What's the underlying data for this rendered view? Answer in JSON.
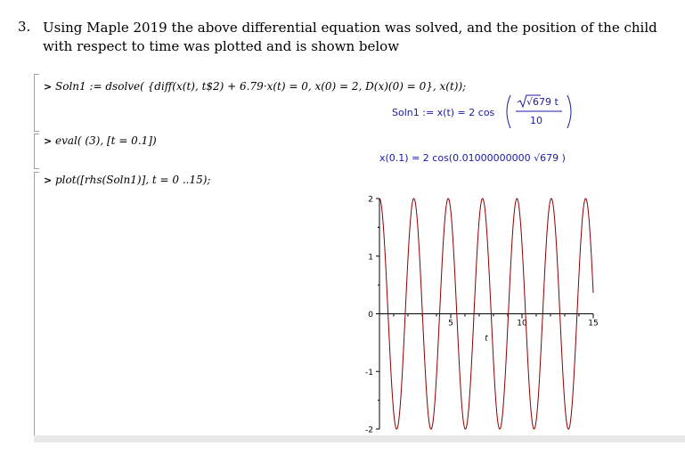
{
  "question": {
    "number": "3.",
    "text": "Using Maple 2019 the above differential equation was solved, and the position of the child with respect to time was plotted and is shown below"
  },
  "maple": {
    "prompt_symbol": ">",
    "commands": [
      "Soln1 := dsolve( {diff(x(t), t$2) + 6.79·x(t) = 0, x(0) = 2, D(x)(0) = 0}, x(t));",
      "eval( (3), [t = 0.1])",
      "plot([rhs(Soln1)], t = 0 ..15);"
    ],
    "outputs": {
      "soln_lhs": "Soln1 := x(t) = 2 cos",
      "soln_num": "√679 t",
      "soln_den": "10",
      "eval_result": "x(0.1) = 2 cos(0.01000000000 √679 )"
    }
  },
  "chart_data": {
    "type": "line",
    "title": "",
    "xlabel": "t",
    "ylabel": "",
    "xlim": [
      0,
      15
    ],
    "ylim": [
      -2,
      2
    ],
    "xticks": [
      "5",
      "10",
      "15"
    ],
    "yticks": [
      "2",
      "1",
      "0",
      "-1",
      "-2"
    ],
    "grid": false,
    "color": "#8b0000",
    "series": [
      {
        "expression": "2 cos(√679 t / 10)",
        "amplitude": 2,
        "angular_frequency": 2.6058,
        "t_start": 0,
        "t_end": 15
      }
    ]
  }
}
